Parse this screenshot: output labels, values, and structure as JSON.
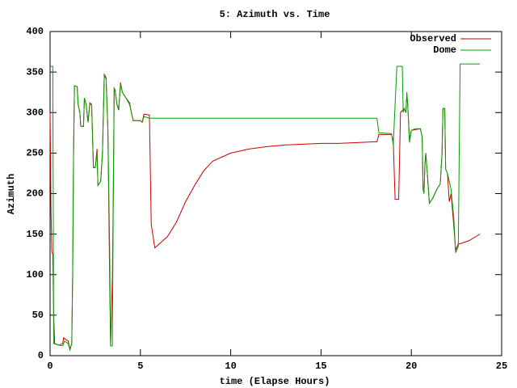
{
  "chart_data": {
    "type": "line",
    "title": "5: Azimuth vs. Time",
    "xlabel": "time (Elapse Hours)",
    "ylabel": "Azimuth",
    "xlim": [
      0,
      25
    ],
    "xticks": [
      0,
      5,
      10,
      15,
      20,
      25
    ],
    "ylim": [
      0,
      400
    ],
    "yticks": [
      0,
      50,
      100,
      150,
      200,
      250,
      300,
      350,
      400
    ],
    "legend": "top-right",
    "series": [
      {
        "name": "Observed",
        "color": "#cc0000",
        "x": [
          0,
          0.05,
          0.1,
          0.15,
          0.2,
          0.25,
          0.5,
          0.7,
          0.75,
          1.0,
          1.1,
          1.2,
          1.25,
          1.3,
          1.35,
          1.5,
          1.55,
          1.65,
          1.7,
          1.85,
          1.9,
          2.0,
          2.1,
          2.2,
          2.3,
          2.4,
          2.5,
          2.6,
          2.65,
          2.8,
          2.9,
          3.0,
          3.1,
          3.2,
          3.3,
          3.35,
          3.45,
          3.5,
          3.55,
          3.6,
          3.7,
          3.8,
          3.9,
          4.0,
          4.2,
          4.4,
          4.5,
          4.6,
          5.0,
          5.1,
          5.2,
          5.5,
          5.6,
          5.8,
          6.5,
          7,
          7.5,
          8,
          8.5,
          9,
          10,
          11,
          12,
          13,
          14,
          15,
          16,
          17,
          18,
          18.1,
          18.2,
          18.9,
          19.0,
          19.1,
          19.3,
          19.4,
          19.6,
          19.7,
          19.75,
          19.8,
          19.9,
          20.0,
          20.5,
          20.6,
          20.65,
          20.7,
          20.75,
          20.8,
          20.9,
          21.0,
          21.2,
          21.4,
          21.6,
          21.7,
          21.75,
          21.85,
          21.9,
          22.0,
          22.1,
          22.2,
          22.35,
          22.45,
          22.6,
          22.7,
          23.2,
          23.8
        ],
        "values": [
          300,
          180,
          128,
          125,
          50,
          15,
          13,
          15,
          22,
          18,
          8,
          15,
          100,
          250,
          333,
          332,
          310,
          300,
          283,
          283,
          318,
          310,
          288,
          312,
          310,
          232,
          232,
          255,
          210,
          215,
          250,
          347,
          343,
          280,
          90,
          12,
          95,
          200,
          330,
          328,
          310,
          303,
          337,
          325,
          318,
          312,
          300,
          290,
          290,
          288,
          298,
          297,
          162,
          133,
          147,
          165,
          190,
          210,
          228,
          240,
          250,
          255,
          258,
          260,
          261,
          262,
          262,
          263,
          264,
          264,
          273,
          273,
          265,
          193,
          193,
          300,
          305,
          300,
          322,
          310,
          265,
          278,
          280,
          270,
          205,
          200,
          235,
          250,
          220,
          188,
          195,
          205,
          212,
          250,
          305,
          305,
          230,
          225,
          190,
          200,
          160,
          130,
          138,
          138,
          142,
          150
        ]
      },
      {
        "name": "Dome",
        "color": "#00a000",
        "x": [
          0,
          0.15,
          0.2,
          0.5,
          0.7,
          0.8,
          1.0,
          1.1,
          1.2,
          1.25,
          1.3,
          1.35,
          1.5,
          1.55,
          1.65,
          1.7,
          1.85,
          1.9,
          2.0,
          2.1,
          2.2,
          2.3,
          2.4,
          2.5,
          2.6,
          2.65,
          2.8,
          2.9,
          3.0,
          3.1,
          3.2,
          3.3,
          3.35,
          3.45,
          3.5,
          3.55,
          3.6,
          3.7,
          3.8,
          3.9,
          4.0,
          4.2,
          4.4,
          4.5,
          4.6,
          5.0,
          5.1,
          5.2,
          5.5,
          18.1,
          18.2,
          18.9,
          19.0,
          19.1,
          19.2,
          19.5,
          19.55,
          19.6,
          19.7,
          19.75,
          19.8,
          19.9,
          20.0,
          20.2,
          20.5,
          20.6,
          20.65,
          20.7,
          20.75,
          20.8,
          20.9,
          21.0,
          21.2,
          21.4,
          21.6,
          21.7,
          21.75,
          21.85,
          21.9,
          22.0,
          22.1,
          22.2,
          22.35,
          22.45,
          22.6,
          22.7,
          23.8
        ],
        "values": [
          357,
          357,
          15,
          13,
          12,
          18,
          15,
          7,
          15,
          100,
          250,
          333,
          332,
          310,
          300,
          283,
          283,
          318,
          310,
          288,
          310,
          310,
          232,
          232,
          250,
          210,
          215,
          250,
          345,
          342,
          280,
          130,
          12,
          12,
          200,
          330,
          328,
          310,
          305,
          335,
          325,
          318,
          310,
          300,
          290,
          290,
          288,
          295,
          293,
          293,
          275,
          274,
          260,
          310,
          357,
          357,
          300,
          305,
          300,
          325,
          310,
          263,
          278,
          280,
          280,
          270,
          205,
          200,
          235,
          250,
          220,
          188,
          195,
          205,
          212,
          250,
          305,
          305,
          230,
          225,
          215,
          205,
          170,
          127,
          135,
          360,
          360
        ]
      }
    ]
  }
}
